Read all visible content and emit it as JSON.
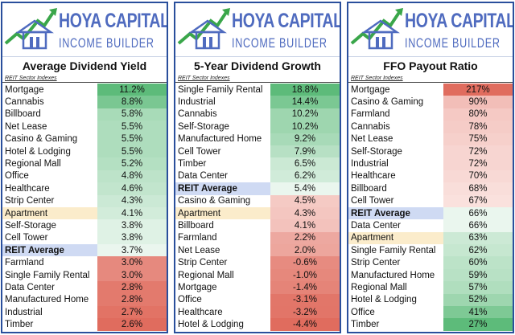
{
  "brand": {
    "line1": "HOYA CAPITAL",
    "line2": "INCOME BUILDER",
    "logo_icon": "house-growth-arrow-icon",
    "colors": {
      "blue": "#4f6bbf",
      "green": "#3aa64a",
      "border": "#2a4f9c"
    }
  },
  "sub_header": "REIT Sector Indexes",
  "colors": {
    "green_strong": "#5dbb7a",
    "green_light": "#eaf6ee",
    "red_strong": "#e06c5e",
    "red_light": "#fbe7e4",
    "average_label_bg": "#cfdaf3",
    "apartment_label_bg": "#fbeccb"
  },
  "panels": [
    {
      "title": "Average Dividend Yield",
      "scale": {
        "best": 11.2,
        "mid": 3.7,
        "worst": 2.6
      },
      "rows": [
        {
          "name": "Mortgage",
          "value": "11.2%",
          "num": 11.2
        },
        {
          "name": "Cannabis",
          "value": "8.8%",
          "num": 8.8
        },
        {
          "name": "Billboard",
          "value": "5.8%",
          "num": 5.8
        },
        {
          "name": "Net Lease",
          "value": "5.5%",
          "num": 5.5
        },
        {
          "name": "Casino & Gaming",
          "value": "5.5%",
          "num": 5.5
        },
        {
          "name": "Hotel & Lodging",
          "value": "5.5%",
          "num": 5.5
        },
        {
          "name": "Regional Mall",
          "value": "5.2%",
          "num": 5.2
        },
        {
          "name": "Office",
          "value": "4.8%",
          "num": 4.8
        },
        {
          "name": "Healthcare",
          "value": "4.6%",
          "num": 4.6
        },
        {
          "name": "Strip Center",
          "value": "4.3%",
          "num": 4.3
        },
        {
          "name": "Apartment",
          "value": "4.1%",
          "num": 4.1,
          "kind": "apt"
        },
        {
          "name": "Self-Storage",
          "value": "3.8%",
          "num": 3.8
        },
        {
          "name": "Cell Tower",
          "value": "3.8%",
          "num": 3.8
        },
        {
          "name": "REIT Average",
          "value": "3.7%",
          "num": 3.7,
          "kind": "avg"
        },
        {
          "name": "Farmland",
          "value": "3.0%",
          "num": 3.0
        },
        {
          "name": "Single Family Rental",
          "value": "3.0%",
          "num": 3.0
        },
        {
          "name": "Data Center",
          "value": "2.8%",
          "num": 2.8
        },
        {
          "name": "Manufactured Home",
          "value": "2.8%",
          "num": 2.8
        },
        {
          "name": "Industrial",
          "value": "2.7%",
          "num": 2.7
        },
        {
          "name": "Timber",
          "value": "2.6%",
          "num": 2.6
        }
      ]
    },
    {
      "title": "5-Year Dividend Growth",
      "scale": {
        "best": 18.8,
        "mid": 5.4,
        "worst": -4.4
      },
      "rows": [
        {
          "name": "Single Family Rental",
          "value": "18.8%",
          "num": 18.8
        },
        {
          "name": "Industrial",
          "value": "14.4%",
          "num": 14.4
        },
        {
          "name": "Cannabis",
          "value": "10.2%",
          "num": 10.2
        },
        {
          "name": "Self-Storage",
          "value": "10.2%",
          "num": 10.2
        },
        {
          "name": "Manufactured Home",
          "value": "9.2%",
          "num": 9.2
        },
        {
          "name": "Cell Tower",
          "value": "7.9%",
          "num": 7.9
        },
        {
          "name": "Timber",
          "value": "6.5%",
          "num": 6.5
        },
        {
          "name": "Data Center",
          "value": "6.2%",
          "num": 6.2
        },
        {
          "name": "REIT Average",
          "value": "5.4%",
          "num": 5.4,
          "kind": "avg"
        },
        {
          "name": "Casino & Gaming",
          "value": "4.5%",
          "num": 4.5
        },
        {
          "name": "Apartment",
          "value": "4.3%",
          "num": 4.3,
          "kind": "apt"
        },
        {
          "name": "Billboard",
          "value": "4.1%",
          "num": 4.1
        },
        {
          "name": "Farmland",
          "value": "2.2%",
          "num": 2.2
        },
        {
          "name": "Net Lease",
          "value": "2.0%",
          "num": 2.0
        },
        {
          "name": "Strip Center",
          "value": "-0.6%",
          "num": -0.6
        },
        {
          "name": "Regional Mall",
          "value": "-1.0%",
          "num": -1.0
        },
        {
          "name": "Mortgage",
          "value": "-1.4%",
          "num": -1.4
        },
        {
          "name": "Office",
          "value": "-3.1%",
          "num": -3.1
        },
        {
          "name": "Healthcare",
          "value": "-3.2%",
          "num": -3.2
        },
        {
          "name": "Hotel & Lodging",
          "value": "-4.4%",
          "num": -4.4
        }
      ]
    },
    {
      "title": "FFO Payout Ratio",
      "scale": {
        "best": 27,
        "mid": 66,
        "worst": 217
      },
      "rows": [
        {
          "name": "Mortgage",
          "value": "217%",
          "num": 217
        },
        {
          "name": "Casino & Gaming",
          "value": "90%",
          "num": 90
        },
        {
          "name": "Farmland",
          "value": "80%",
          "num": 80
        },
        {
          "name": "Cannabis",
          "value": "78%",
          "num": 78
        },
        {
          "name": "Net Lease",
          "value": "75%",
          "num": 75
        },
        {
          "name": "Self-Storage",
          "value": "72%",
          "num": 72
        },
        {
          "name": "Industrial",
          "value": "72%",
          "num": 72
        },
        {
          "name": "Healthcare",
          "value": "70%",
          "num": 70
        },
        {
          "name": "Billboard",
          "value": "68%",
          "num": 68
        },
        {
          "name": "Cell Tower",
          "value": "67%",
          "num": 67
        },
        {
          "name": "REIT Average",
          "value": "66%",
          "num": 66,
          "kind": "avg"
        },
        {
          "name": "Data Center",
          "value": "66%",
          "num": 66
        },
        {
          "name": "Apartment",
          "value": "63%",
          "num": 63,
          "kind": "apt"
        },
        {
          "name": "Single Family Rental",
          "value": "62%",
          "num": 62
        },
        {
          "name": "Strip Center",
          "value": "60%",
          "num": 60
        },
        {
          "name": "Manufactured Home",
          "value": "59%",
          "num": 59
        },
        {
          "name": "Regional Mall",
          "value": "57%",
          "num": 57
        },
        {
          "name": "Hotel & Lodging",
          "value": "52%",
          "num": 52
        },
        {
          "name": "Office",
          "value": "41%",
          "num": 41
        },
        {
          "name": "Timber",
          "value": "27%",
          "num": 27
        }
      ]
    }
  ]
}
